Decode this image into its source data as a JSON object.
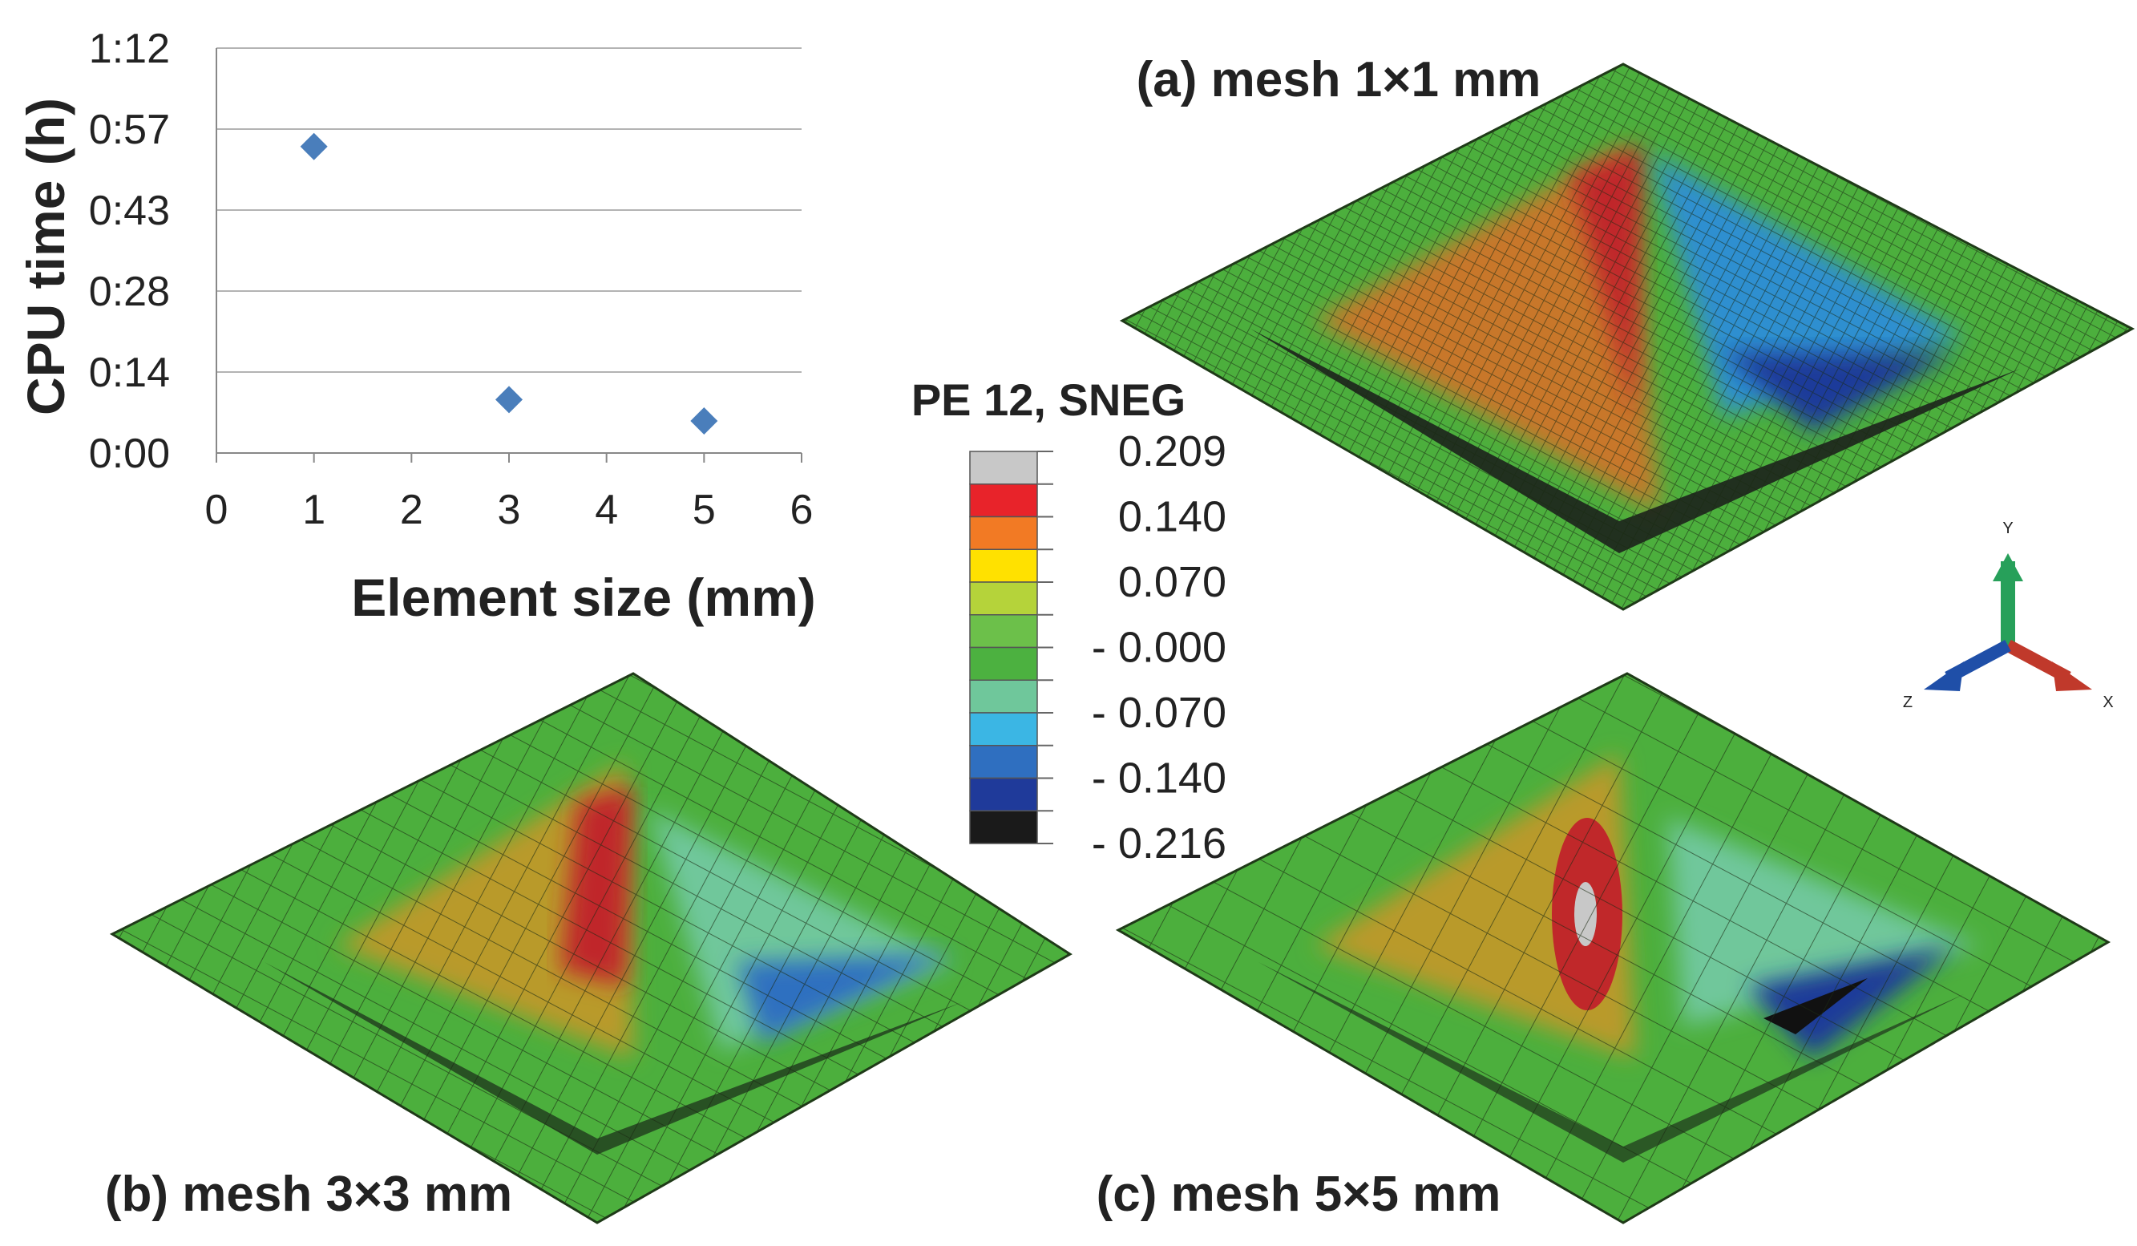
{
  "chart_data": [
    {
      "type": "scatter",
      "title": "",
      "xlabel": "Element size (mm)",
      "ylabel": "CPU time (h)",
      "xlim": [
        0,
        6
      ],
      "xticks": [
        "0",
        "1",
        "2",
        "3",
        "4",
        "5",
        "6"
      ],
      "yticks": [
        "0:00",
        "0:14",
        "0:28",
        "0:43",
        "0:57",
        "1:12"
      ],
      "ylim_minutes": [
        0,
        72
      ],
      "grid": true,
      "points": [
        {
          "x": 1,
          "y_minutes": 54.5
        },
        {
          "x": 3,
          "y_minutes": 9.5
        },
        {
          "x": 5,
          "y_minutes": 5.7
        }
      ],
      "marker_color": "#4a7ebb"
    },
    {
      "type": "heatmap",
      "title": "PE 12, SNEG",
      "colorbar_labels": [
        "0.209",
        "0.140",
        "0.070",
        "- 0.000",
        "- 0.070",
        "- 0.140",
        "- 0.216"
      ],
      "colorbar_colors": [
        "#c8c8c8",
        "#e8232a",
        "#f27a24",
        "#ffe100",
        "#b5d33a",
        "#6cc04a",
        "#4cb140",
        "#6fc79b",
        "#3bb6e4",
        "#2f6fc0",
        "#1f3a9a",
        "#1a1a1a"
      ],
      "panels": [
        {
          "label": "(a) mesh 1×1 mm"
        },
        {
          "label": "(b) mesh 3×3 mm"
        },
        {
          "label": "(c) mesh 5×5 mm"
        }
      ],
      "axes_triad": {
        "x": "X",
        "y": "Y",
        "z": "Z",
        "x_color": "#c0392b",
        "y_color": "#27a05a",
        "z_color": "#1f4fa8"
      }
    }
  ]
}
